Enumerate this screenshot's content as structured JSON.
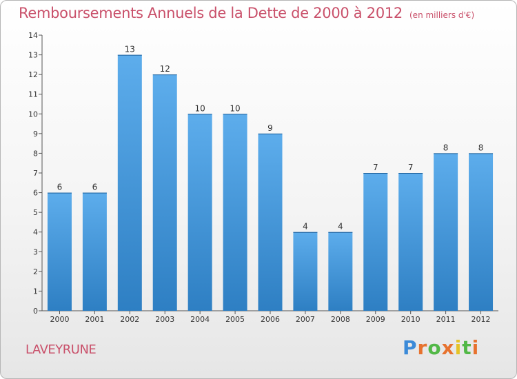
{
  "header": {
    "title": "Remboursements Annuels de la Dette de 2000 à 2012",
    "subtitle": "(en milliers d'€)"
  },
  "footer": {
    "town": "LAVEYRUNE",
    "logo_text": "Proxiti"
  },
  "colors": {
    "accent": "#c9506a",
    "bar_top": "#5dadec",
    "bar_bottom": "#2e7fc3"
  },
  "chart_data": {
    "type": "bar",
    "categories": [
      "2000",
      "2001",
      "2002",
      "2003",
      "2004",
      "2005",
      "2006",
      "2007",
      "2008",
      "2009",
      "2010",
      "2011",
      "2012"
    ],
    "values": [
      6,
      6,
      13,
      12,
      10,
      10,
      9,
      4,
      4,
      7,
      7,
      8,
      8
    ],
    "yticks": [
      "0",
      "1",
      "2",
      "3",
      "4",
      "5",
      "6",
      "7",
      "8",
      "9",
      "10",
      "11",
      "12",
      "13",
      "14"
    ],
    "ylim": [
      0,
      14
    ],
    "grid": false,
    "legend": "none"
  }
}
